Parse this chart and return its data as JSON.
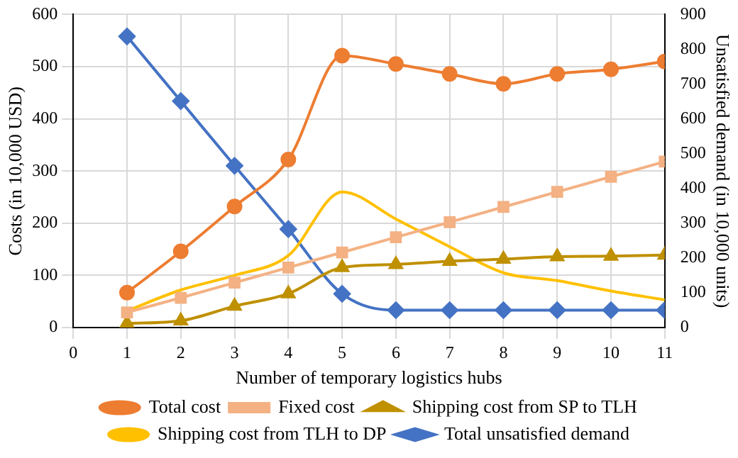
{
  "chart_data": {
    "type": "line",
    "xlabel": "Number of temporary logistics hubs",
    "ylabel": "Costs (in 10,000 USD)",
    "y2label": "Unsatisfied demand (in 10,000 units)",
    "x": [
      1,
      2,
      3,
      4,
      5,
      6,
      7,
      8,
      9,
      10,
      11
    ],
    "xlim": [
      0,
      11
    ],
    "xticks": [
      0,
      1,
      2,
      3,
      4,
      5,
      6,
      7,
      8,
      9,
      10,
      11
    ],
    "ylim": [
      0,
      600
    ],
    "yticks": [
      0,
      100,
      200,
      300,
      400,
      500,
      600
    ],
    "y2lim": [
      0,
      900
    ],
    "y2ticks": [
      0,
      100,
      200,
      300,
      400,
      500,
      600,
      700,
      800,
      900
    ],
    "grid": true,
    "legend": "bottom",
    "series": [
      {
        "name": "Total cost",
        "color": "#ed7d31",
        "marker": "circle",
        "values": [
          67,
          146,
          232,
          322,
          521,
          505,
          486,
          467,
          486,
          495,
          510
        ]
      },
      {
        "name": "Fixed cost",
        "color": "#f4b183",
        "marker": "square",
        "values": [
          29,
          57,
          86,
          115,
          144,
          173,
          202,
          231,
          260,
          289,
          318
        ]
      },
      {
        "name": "Shipping cost from SP to TLH",
        "color": "#bf9000",
        "marker": "triangle",
        "values": [
          8,
          13,
          41,
          65,
          115,
          121,
          127,
          131,
          136,
          137,
          139
        ]
      },
      {
        "name": "Shipping cost from TLH to DP",
        "color": "#ffc000",
        "marker": "none",
        "values": [
          32,
          72,
          100,
          138,
          260,
          208,
          155,
          105,
          90,
          70,
          53
        ]
      },
      {
        "name": "Total unsatisfied demand",
        "color": "#4472c4",
        "marker": "diamond",
        "axis": "y2",
        "values": [
          837,
          651,
          465,
          283,
          97,
          50,
          50,
          50,
          50,
          50,
          50
        ]
      }
    ]
  }
}
